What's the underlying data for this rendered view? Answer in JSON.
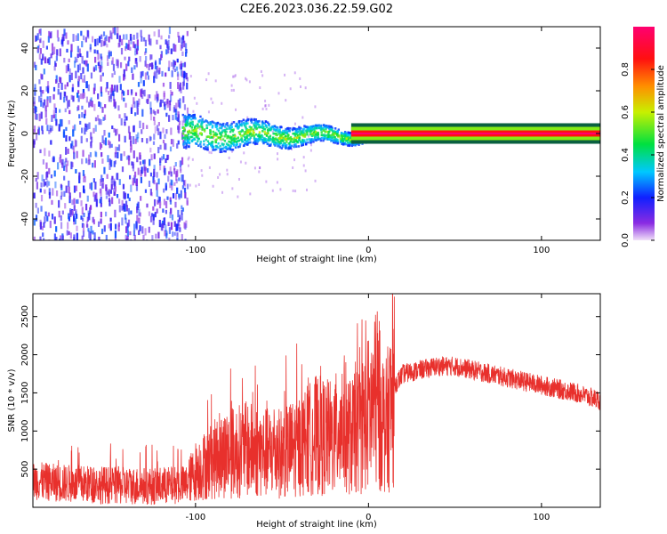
{
  "figure": {
    "title": "C2E6.2023.036.22.59.G02"
  },
  "colors": {
    "snr_line": "#e8302c",
    "frame": "#000000",
    "background": "#ffffff"
  },
  "chart_data": [
    {
      "type": "heatmap",
      "title": "C2E6.2023.036.22.59.G02",
      "xlabel": "Height of straight line (km)",
      "ylabel": "Frequency (Hz)",
      "xlim": [
        -194,
        134
      ],
      "ylim": [
        -50,
        50
      ],
      "xticks": [
        -100,
        0,
        100
      ],
      "xtick_labels": [
        "-100",
        "0",
        "100"
      ],
      "yticks": [
        -40,
        -20,
        0,
        20,
        40
      ],
      "ytick_labels": [
        "-40",
        "-20",
        "0",
        "20",
        "40"
      ],
      "grid": false,
      "colorbar": {
        "label": "Normalized spectral amplitude",
        "range": [
          0,
          1
        ],
        "ticks": [
          0,
          0.2,
          0.4,
          0.6,
          0.8
        ],
        "tick_labels": [
          "0.0",
          "0.2",
          "0.4",
          "0.6",
          "0.8"
        ],
        "colormap": "rainbow (purple-blue-cyan-green-yellow-red-magenta)"
      },
      "regions": [
        {
          "x_range": [
            -194,
            -105
          ],
          "frequency_range": [
            -50,
            50
          ],
          "amplitude_range": [
            0.05,
            0.25
          ],
          "description": "noise"
        },
        {
          "x_range": [
            -108,
            10
          ],
          "frequency_center": 0,
          "frequency_halfwidth": [
            8,
            2
          ],
          "amplitude_range": [
            0.2,
            0.55
          ]
        },
        {
          "x_range": [
            -10,
            134
          ],
          "frequency_center": 0,
          "frequency_halfwidth": 1.5,
          "amplitude_range": [
            0.85,
            1.0
          ]
        }
      ]
    },
    {
      "type": "line",
      "xlabel": "Height of straight line (km)",
      "ylabel": "SNR (10 * v/v)",
      "xlim": [
        -194,
        134
      ],
      "ylim": [
        0,
        2800
      ],
      "xticks": [
        -100,
        0,
        100
      ],
      "xtick_labels": [
        "-100",
        "0",
        "100"
      ],
      "yticks": [
        500,
        1000,
        1500,
        2000,
        2500
      ],
      "ytick_labels": [
        "500",
        "1000",
        "1500",
        "2000",
        "2500"
      ],
      "grid": false,
      "series": [
        {
          "color": "#e8302c",
          "x": [
            -194,
            -180,
            -160,
            -140,
            -120,
            -106,
            -100,
            -90,
            -80,
            -70,
            -60,
            -50,
            -40,
            -30,
            -20,
            -15,
            -10,
            -5,
            0,
            5,
            10,
            15,
            20,
            30,
            40,
            50,
            60,
            70,
            80,
            90,
            100,
            110,
            120,
            134
          ],
          "y": [
            350,
            320,
            300,
            280,
            280,
            300,
            500,
            650,
            750,
            800,
            750,
            750,
            850,
            1000,
            950,
            1200,
            950,
            1100,
            1300,
            1450,
            1100,
            1600,
            1750,
            1800,
            1850,
            1850,
            1800,
            1750,
            1700,
            1650,
            1600,
            1550,
            1500,
            1400
          ]
        }
      ]
    }
  ]
}
